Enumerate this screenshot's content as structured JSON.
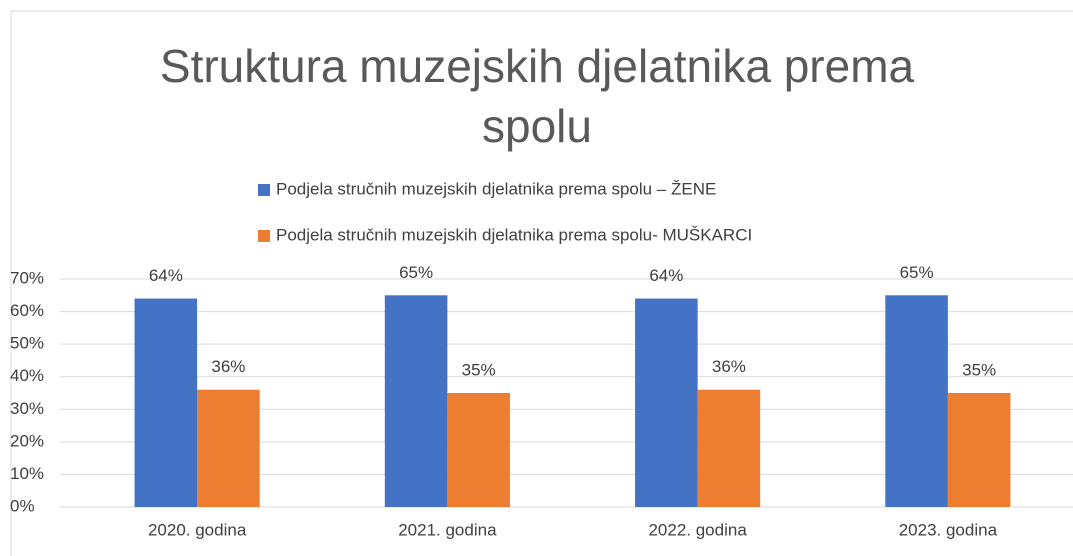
{
  "chart_data": {
    "type": "bar",
    "title": "Struktura muzejskih djelatnika prema spolu",
    "categories": [
      "2020. godina",
      "2021. godina",
      "2022. godina",
      "2023. godina"
    ],
    "series": [
      {
        "name": "Podjela stručnih muzejskih djelatnika prema spolu – ŽENE",
        "color": "#4472c4",
        "values": [
          64,
          65,
          64,
          65
        ],
        "value_labels": [
          "64%",
          "65%",
          "64%",
          "65%"
        ]
      },
      {
        "name": "Podjela stručnih muzejskih djelatnika prema spolu- MUŠKARCI",
        "color": "#ed7d31",
        "values": [
          36,
          35,
          36,
          35
        ],
        "value_labels": [
          "36%",
          "35%",
          "36%",
          "35%"
        ]
      }
    ],
    "ylim": [
      0,
      70
    ],
    "yticks": [
      {
        "value": 0,
        "label": "0%"
      },
      {
        "value": 10,
        "label": "10%"
      },
      {
        "value": 20,
        "label": "20%"
      },
      {
        "value": 30,
        "label": "30%"
      },
      {
        "value": 40,
        "label": "40%"
      },
      {
        "value": 50,
        "label": "50%"
      },
      {
        "value": 60,
        "label": "60%"
      },
      {
        "value": 70,
        "label": "70%"
      }
    ],
    "grid": true,
    "legend": "top"
  }
}
